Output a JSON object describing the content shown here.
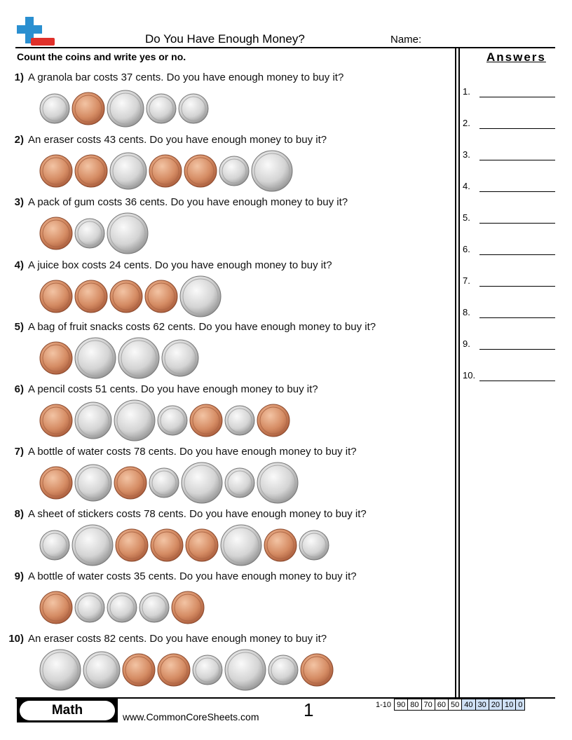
{
  "header": {
    "title": "Do You Have Enough Money?",
    "name_label": "Name:"
  },
  "instructions": "Count the coins and write yes or no.",
  "questions": [
    {
      "number": "1)",
      "text": "A granola bar costs 37 cents. Do you have enough money to buy it?"
    },
    {
      "number": "2)",
      "text": "An eraser costs 43 cents. Do you have enough money to buy it?"
    },
    {
      "number": "3)",
      "text": "A pack of gum costs 36 cents. Do you have enough money to buy it?"
    },
    {
      "number": "4)",
      "text": "A juice box costs 24 cents. Do you have enough money to buy it?"
    },
    {
      "number": "5)",
      "text": "A bag of fruit snacks costs 62 cents. Do you have enough money to buy it?"
    },
    {
      "number": "6)",
      "text": "A pencil costs 51 cents. Do you have enough money to buy it?"
    },
    {
      "number": "7)",
      "text": "A bottle of water costs 78 cents. Do you have enough money to buy it?"
    },
    {
      "number": "8)",
      "text": "A sheet of stickers costs 78 cents. Do you have enough money to buy it?"
    },
    {
      "number": "9)",
      "text": "A bottle of water costs 35 cents. Do you have enough money to buy it?"
    },
    {
      "number": "10)",
      "text": "An eraser costs 82 cents. Do you have enough money to buy it?"
    }
  ],
  "answers": {
    "title": "Answers",
    "numbers": [
      "1.",
      "2.",
      "3.",
      "4.",
      "5.",
      "6.",
      "7.",
      "8.",
      "9.",
      "10."
    ]
  },
  "footer": {
    "subject": "Math",
    "url": "www.CommonCoreSheets.com",
    "page": "1",
    "score_label": "1-10",
    "scores": [
      "90",
      "80",
      "70",
      "60",
      "50",
      "40",
      "30",
      "20",
      "10",
      "0"
    ]
  }
}
